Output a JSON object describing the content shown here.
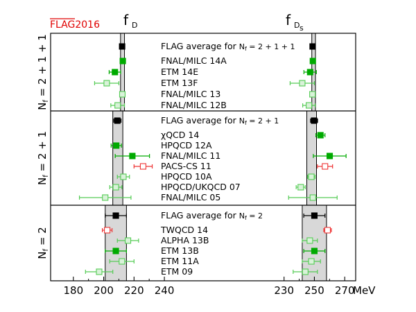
{
  "chart_data": {
    "type": "scatter",
    "logo": "FLAG2016",
    "titles": {
      "left": "f",
      "left_sub": "D",
      "right": "f",
      "right_sub": "D",
      "right_subsub": "s"
    },
    "xlabel_unit": "MeV",
    "ticks_left": [
      180,
      200,
      220,
      240
    ],
    "ticks_right": [
      230,
      250,
      270
    ],
    "axis": {
      "left_xlim": [
        165,
        245
      ],
      "right_xlim": [
        205,
        285
      ]
    },
    "groups": [
      {
        "label": "N_f = 2+1+1",
        "label_parts": [
          "N",
          "f",
          " = 2 + 1 + 1"
        ],
        "band_left": [
          211.1,
          213.7
        ],
        "band_right": [
          248.3,
          250.7
        ],
        "rows": [
          {
            "name": "FLAG average for N_f = 2+1+1",
            "name_main": "FLAG average for ",
            "name_tail": "N",
            "name_sub": "f",
            "name_tail2": " = 2 + 1 + 1",
            "style": "avg",
            "left": {
              "v": 212.15,
              "e": 1.45
            },
            "right": {
              "v": 248.83,
              "e": 1.27
            }
          },
          {
            "name": "FNAL/MILC 14A",
            "style": "filled",
            "left": {
              "v": 212.6,
              "e": 0.5
            },
            "right": {
              "v": 249.0,
              "e": 0.5
            }
          },
          {
            "name": "ETM 14E",
            "style": "filled",
            "left": {
              "v": 207.4,
              "e": 3.8
            },
            "right": {
              "v": 247.2,
              "e": 4.1
            }
          },
          {
            "name": "ETM 13F",
            "style": "open",
            "left": {
              "v": 202.0,
              "e": 8.0
            },
            "right": {
              "v": 242.0,
              "e": 8.0
            }
          },
          {
            "name": "FNAL/MILC 13",
            "style": "open",
            "left": {
              "v": 212.3,
              "e": 0.7
            },
            "right": {
              "v": 248.7,
              "e": 0.7
            }
          },
          {
            "name": "FNAL/MILC 12B",
            "style": "open",
            "left": {
              "v": 209.2,
              "e": 4.5
            },
            "right": {
              "v": 246.4,
              "e": 4.1
            }
          }
        ]
      },
      {
        "label": "N_f = 2+1",
        "label_parts": [
          "N",
          "f",
          " = 2 + 1"
        ],
        "band_left": [
          206.0,
          212.6
        ],
        "band_right": [
          245.0,
          251.4
        ],
        "rows": [
          {
            "name": "FLAG average for N_f = 2+1",
            "name_main": "FLAG average for ",
            "name_tail": "N",
            "name_sub": "f",
            "name_tail2": " = 2 + 1",
            "style": "avg",
            "left": {
              "v": 209.0,
              "e": 2.4
            },
            "right": {
              "v": 249.8,
              "e": 2.3
            }
          },
          {
            "name": "χQCD 14",
            "style": "filled",
            "left": null,
            "right": {
              "v": 254.0,
              "e": 3.0
            }
          },
          {
            "name": "HPQCD 12A",
            "style": "filled",
            "left": {
              "v": 208.3,
              "e": 3.4
            },
            "right": null
          },
          {
            "name": "FNAL/MILC 11",
            "style": "filled",
            "left": {
              "v": 218.9,
              "e": 11.3
            },
            "right": {
              "v": 260.1,
              "e": 10.8
            }
          },
          {
            "name": "PACS-CS 11",
            "style": "open-red",
            "left": {
              "v": 226.0,
              "e": 6.0
            },
            "right": {
              "v": 257.0,
              "e": 5.0
            }
          },
          {
            "name": "HPQCD 10A",
            "style": "open",
            "left": {
              "v": 213.0,
              "e": 4.0
            },
            "right": {
              "v": 248.0,
              "e": 2.5
            }
          },
          {
            "name": "HPQCD/UKQCD 07",
            "style": "open",
            "left": {
              "v": 208.0,
              "e": 4.0
            },
            "right": {
              "v": 241.0,
              "e": 3.0
            }
          },
          {
            "name": "FNAL/MILC 05",
            "style": "open",
            "left": {
              "v": 201.0,
              "e": 17.0
            },
            "right": {
              "v": 249.0,
              "e": 16.0
            }
          }
        ]
      },
      {
        "label": "N_f = 2",
        "label_parts": [
          "N",
          "f",
          " = 2"
        ],
        "band_left": [
          201.0,
          215.0
        ],
        "band_right": [
          242.0,
          258.0
        ],
        "rows": [
          {
            "name": "FLAG average for N_f = 2",
            "name_main": "FLAG average for ",
            "name_tail": "N",
            "name_sub": "f",
            "name_tail2": " = 2",
            "style": "avg",
            "left": {
              "v": 208.0,
              "e": 7.0
            },
            "right": {
              "v": 250.0,
              "e": 7.0
            }
          },
          {
            "name": "TWQCD 14",
            "style": "open-red",
            "left": {
              "v": 202.3,
              "e": 3.2
            },
            "right": {
              "v": 258.7,
              "e": 2.5
            }
          },
          {
            "name": "ALPHA 13B",
            "style": "open",
            "left": {
              "v": 216.0,
              "e": 7.0
            },
            "right": {
              "v": 247.0,
              "e": 5.0
            }
          },
          {
            "name": "ETM 13B",
            "style": "filled",
            "left": {
              "v": 208.0,
              "e": 7.0
            },
            "right": {
              "v": 250.0,
              "e": 7.0
            }
          },
          {
            "name": "ETM 11A",
            "style": "open",
            "left": {
              "v": 212.0,
              "e": 8.0
            },
            "right": {
              "v": 248.0,
              "e": 6.0
            }
          },
          {
            "name": "ETM 09",
            "style": "open",
            "left": {
              "v": 197.0,
              "e": 9.0
            },
            "right": {
              "v": 244.0,
              "e": 8.0
            }
          }
        ]
      }
    ],
    "colors": {
      "avg": "#000000",
      "filled": "#00aa00",
      "open": "#55cc55",
      "open_fill": "#d9f2d9",
      "open_red": "#ee3333",
      "band": "#d8d8d8",
      "logo": "#e00000"
    }
  }
}
